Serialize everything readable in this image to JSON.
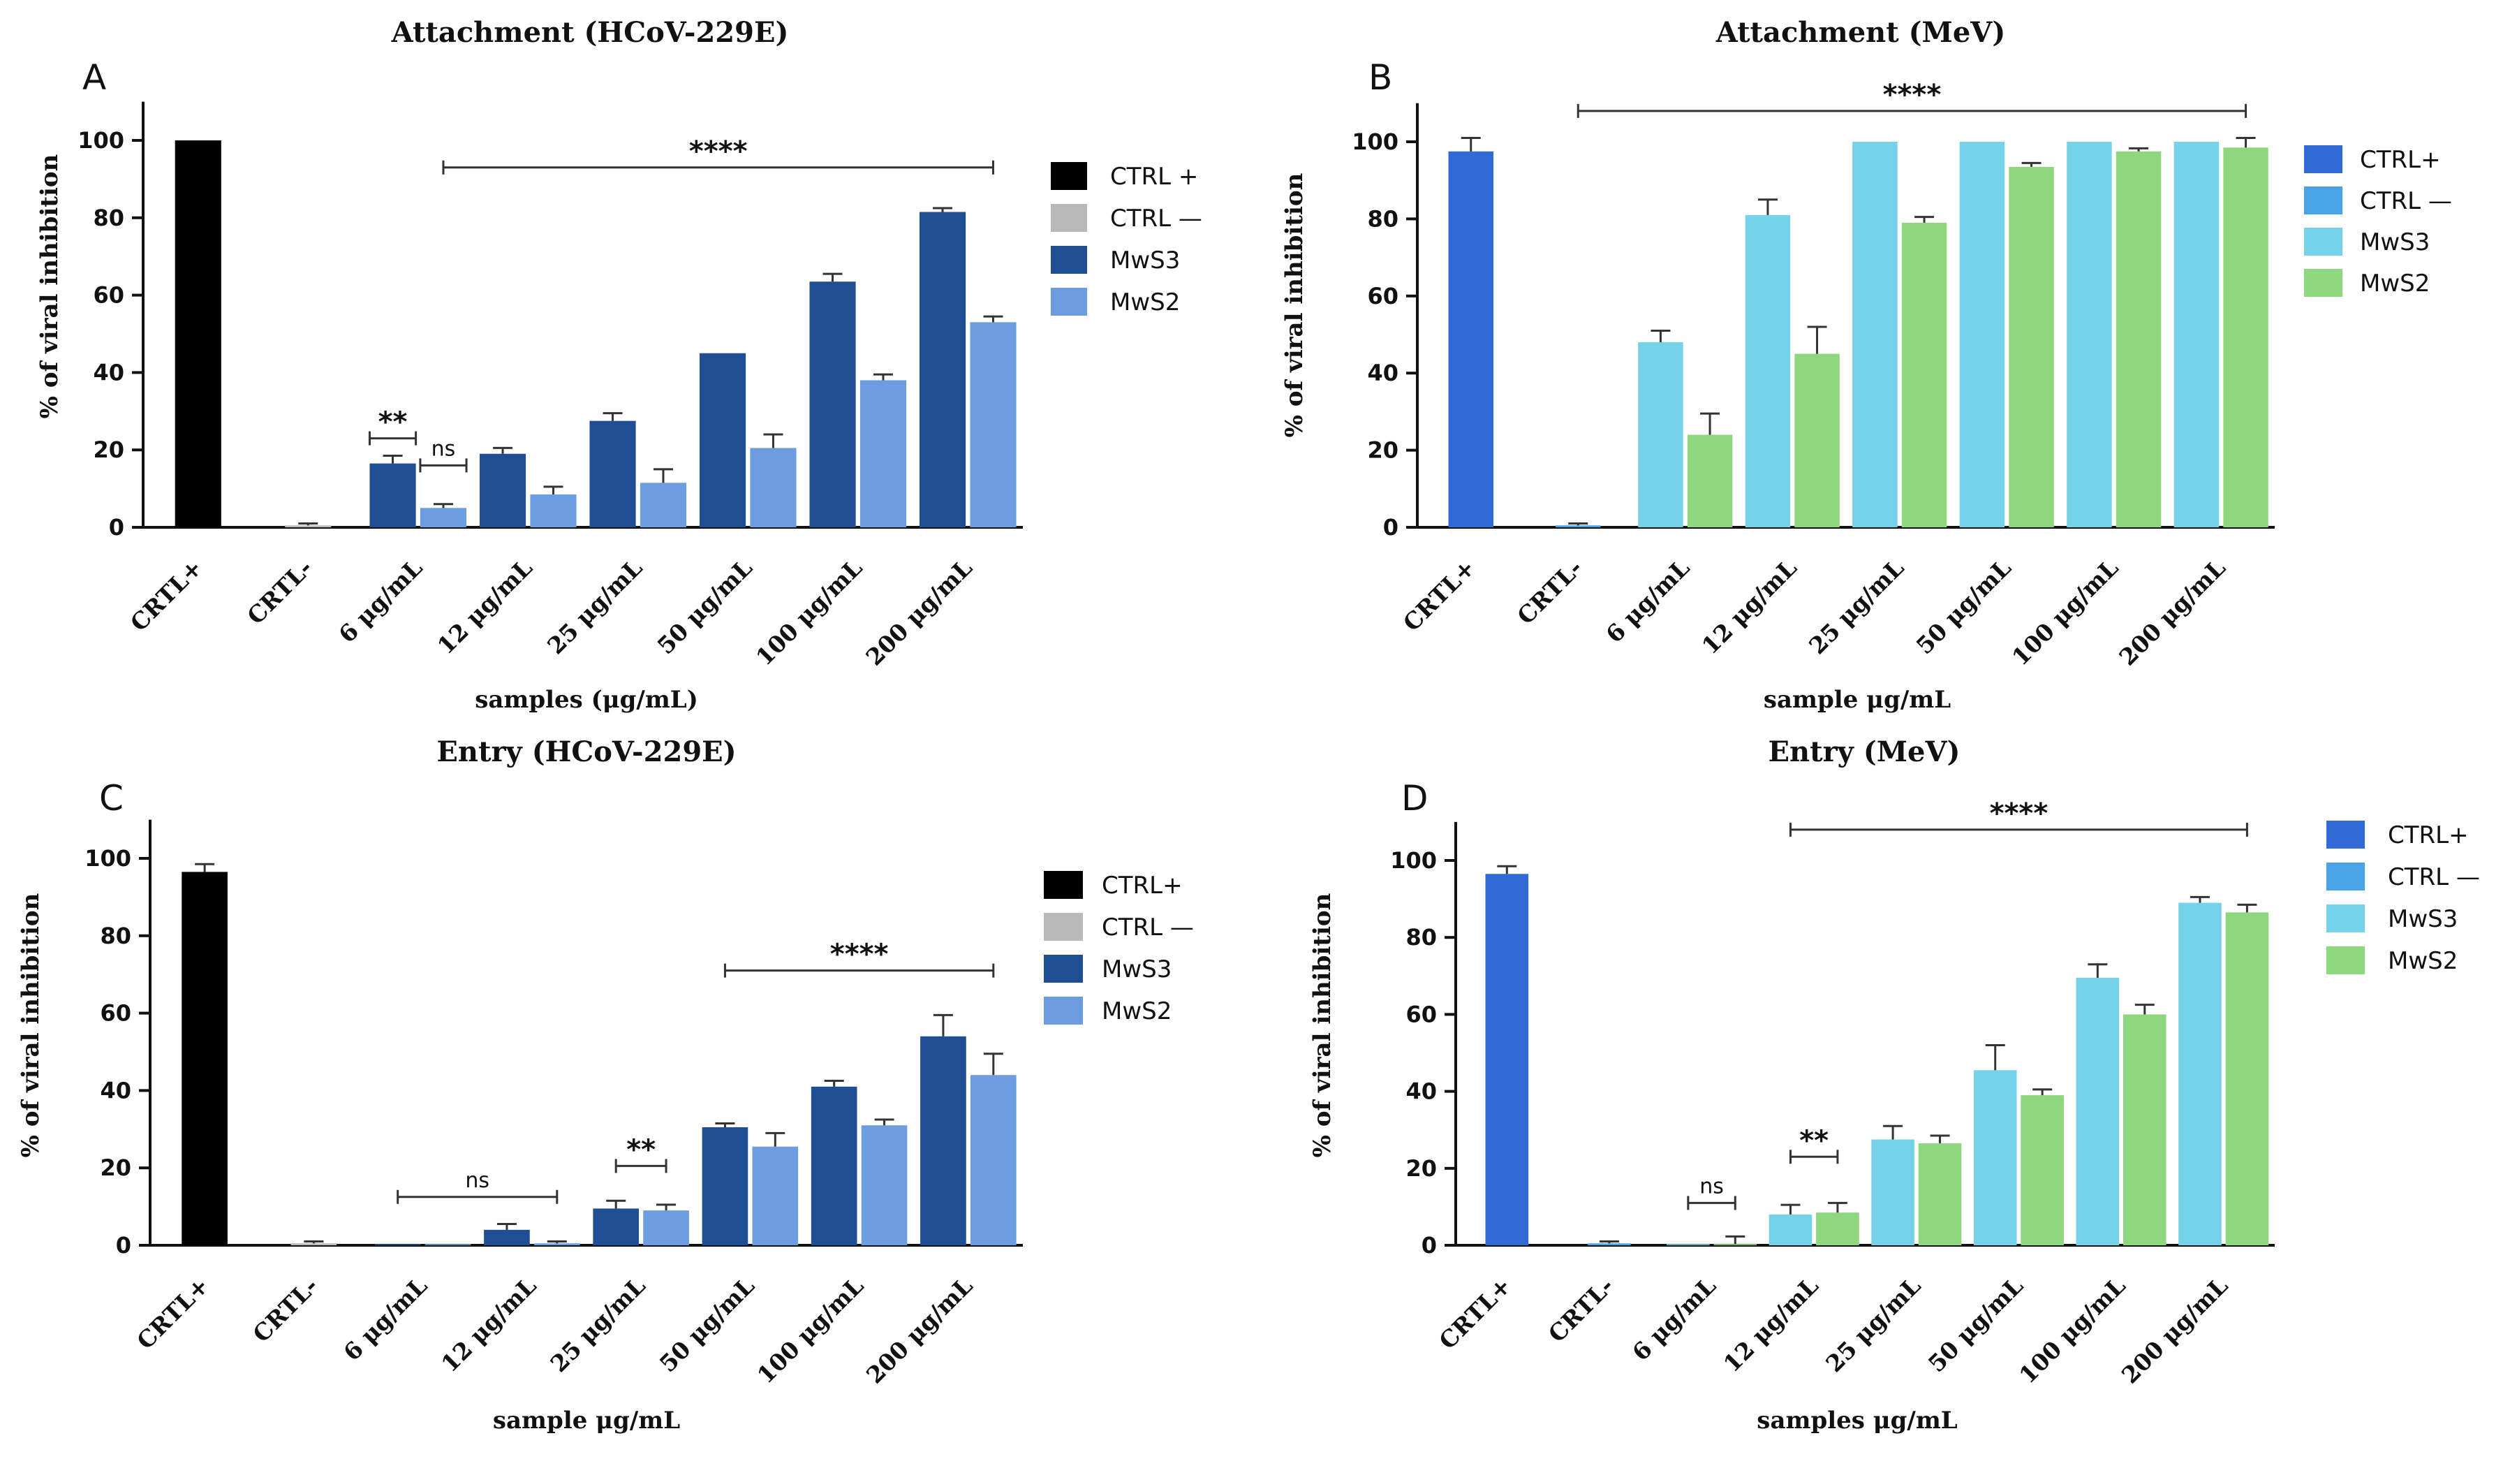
{
  "colors": {
    "black": "#000000",
    "grey": "#b9b9b9",
    "navy": "#1f4e94",
    "lightblue": "#6c9de0",
    "royal": "#2f6ad6",
    "sky": "#4aa3e6",
    "cyan": "#76d2e8",
    "green": "#8ed77f",
    "axis": "#111111"
  },
  "chart_data": [
    {
      "panel": "A",
      "type": "bar",
      "title": "Attachment  (HCoV-229E)",
      "ylabel": "% of viral inhibition",
      "xlabel": "samples (μg/mL)",
      "ylim": [
        0,
        110
      ],
      "yticks": [
        "0",
        "20",
        "40",
        "60",
        "80",
        "100"
      ],
      "categories": [
        "CRTL+",
        "CRTL-",
        "6 μg/mL",
        "12 μg/mL",
        "25 μg/mL",
        "50 μg/mL",
        "100 μg/mL",
        "200 μg/mL"
      ],
      "series": [
        {
          "name": "CTRL +",
          "color": "black",
          "values": [
            100,
            null,
            null,
            null,
            null,
            null,
            null,
            null
          ],
          "errors": [
            0,
            null,
            null,
            null,
            null,
            null,
            null,
            null
          ]
        },
        {
          "name": "CTRL —",
          "color": "grey",
          "values": [
            null,
            0.5,
            null,
            null,
            null,
            null,
            null,
            null
          ],
          "errors": [
            null,
            0.5,
            null,
            null,
            null,
            null,
            null,
            null
          ]
        },
        {
          "name": "MwS3",
          "color": "navy",
          "values": [
            null,
            null,
            16.5,
            19,
            27.5,
            45,
            63.5,
            81.5
          ],
          "errors": [
            null,
            null,
            2,
            1.5,
            2,
            0,
            2,
            1
          ]
        },
        {
          "name": "MwS2",
          "color": "lightblue",
          "values": [
            null,
            null,
            5,
            8.5,
            11.5,
            20.5,
            38,
            53
          ],
          "errors": [
            null,
            null,
            1,
            2,
            3.5,
            3.5,
            1.5,
            1.5
          ]
        }
      ],
      "annotations": [
        {
          "text": "****",
          "kind": "sig",
          "from": [
            2,
            1
          ],
          "to": [
            7,
            1
          ],
          "y": 93
        },
        {
          "text": "**",
          "kind": "sig",
          "from": [
            2,
            0
          ],
          "to": [
            2,
            0
          ],
          "y": 23
        },
        {
          "text": "ns",
          "kind": "ns",
          "from": [
            2,
            1
          ],
          "to": [
            2,
            1
          ],
          "y": 16
        }
      ]
    },
    {
      "panel": "B",
      "type": "bar",
      "title": "Attachment (MeV)",
      "ylabel": "% of viral inhibition",
      "xlabel": "sample μg/mL",
      "ylim": [
        0,
        110
      ],
      "yticks": [
        "0",
        "20",
        "40",
        "60",
        "80",
        "100"
      ],
      "categories": [
        "CRTL+",
        "CRTL-",
        "6 μg/mL",
        "12 μg/mL",
        "25 μg/mL",
        "50 μg/mL",
        "100 μg/mL",
        "200 μg/mL"
      ],
      "series": [
        {
          "name": "CTRL+",
          "color": "royal",
          "values": [
            97.5,
            null,
            null,
            null,
            null,
            null,
            null,
            null
          ],
          "errors": [
            3.5,
            null,
            null,
            null,
            null,
            null,
            null,
            null
          ]
        },
        {
          "name": "CTRL —",
          "color": "sky",
          "values": [
            null,
            0.5,
            null,
            null,
            null,
            null,
            null,
            null
          ],
          "errors": [
            null,
            0.5,
            null,
            null,
            null,
            null,
            null,
            null
          ]
        },
        {
          "name": "MwS3",
          "color": "cyan",
          "values": [
            null,
            null,
            48,
            81,
            100,
            100,
            100,
            100
          ],
          "errors": [
            null,
            null,
            3,
            4,
            0,
            0,
            0,
            0
          ]
        },
        {
          "name": "MwS2",
          "color": "green",
          "values": [
            null,
            null,
            24,
            45,
            79,
            93.5,
            97.5,
            98.5
          ],
          "errors": [
            null,
            null,
            5.5,
            7,
            1.5,
            1,
            0.8,
            2.5
          ]
        }
      ],
      "annotations": [
        {
          "text": "****",
          "kind": "sig",
          "from": [
            1,
            1
          ],
          "to": [
            7,
            1
          ],
          "y": 108
        }
      ]
    },
    {
      "panel": "C",
      "type": "bar",
      "title": "Entry  (HCoV-229E)",
      "ylabel": "% of viral inhibition",
      "xlabel": "sample μg/mL",
      "ylim": [
        0,
        110
      ],
      "yticks": [
        "0",
        "20",
        "40",
        "60",
        "80",
        "100"
      ],
      "categories": [
        "CRTL+",
        "CRTL-",
        "6 μg/mL",
        "12 μg/mL",
        "25 μg/mL",
        "50 μg/mL",
        "100 μg/mL",
        "200 μg/mL"
      ],
      "series": [
        {
          "name": "CTRL+",
          "color": "black",
          "values": [
            96.5,
            null,
            null,
            null,
            null,
            null,
            null,
            null
          ],
          "errors": [
            2,
            null,
            null,
            null,
            null,
            null,
            null,
            null
          ]
        },
        {
          "name": "CTRL —",
          "color": "grey",
          "values": [
            null,
            0.5,
            null,
            null,
            null,
            null,
            null,
            null
          ],
          "errors": [
            null,
            0.5,
            null,
            null,
            null,
            null,
            null,
            null
          ]
        },
        {
          "name": "MwS3",
          "color": "navy",
          "values": [
            null,
            null,
            0.3,
            4,
            9.5,
            30.5,
            41,
            54
          ],
          "errors": [
            null,
            null,
            0,
            1.5,
            2,
            1,
            1.5,
            5.5
          ]
        },
        {
          "name": "MwS2",
          "color": "lightblue",
          "values": [
            null,
            null,
            0.3,
            0.5,
            9,
            25.5,
            31,
            44
          ],
          "errors": [
            null,
            null,
            0,
            0.5,
            1.5,
            3.5,
            1.5,
            5.5
          ]
        }
      ],
      "annotations": [
        {
          "text": "ns",
          "kind": "ns",
          "from": [
            2,
            0
          ],
          "to": [
            3,
            1
          ],
          "y": 12.5
        },
        {
          "text": "**",
          "kind": "sig",
          "from": [
            4,
            0
          ],
          "to": [
            4,
            1
          ],
          "y": 20.5
        },
        {
          "text": "****",
          "kind": "sig",
          "from": [
            5,
            0
          ],
          "to": [
            7,
            1
          ],
          "y": 71
        }
      ]
    },
    {
      "panel": "D",
      "type": "bar",
      "title": "Entry (MeV)",
      "ylabel": "% of viral inhibition",
      "xlabel": "samples μg/mL",
      "ylim": [
        0,
        110
      ],
      "yticks": [
        "0",
        "20",
        "40",
        "60",
        "80",
        "100"
      ],
      "categories": [
        "CRTL+",
        "CRTL-",
        "6 μg/mL",
        "12 μg/mL",
        "25 μg/mL",
        "50 μg/mL",
        "100 μg/mL",
        "200 μg/mL"
      ],
      "series": [
        {
          "name": "CTRL+",
          "color": "royal",
          "values": [
            96.5,
            null,
            null,
            null,
            null,
            null,
            null,
            null
          ],
          "errors": [
            2,
            null,
            null,
            null,
            null,
            null,
            null,
            null
          ]
        },
        {
          "name": "CTRL —",
          "color": "sky",
          "values": [
            null,
            0.5,
            null,
            null,
            null,
            null,
            null,
            null
          ],
          "errors": [
            null,
            0.5,
            null,
            null,
            null,
            null,
            null,
            null
          ]
        },
        {
          "name": "MwS3",
          "color": "cyan",
          "values": [
            null,
            null,
            0.3,
            8,
            27.5,
            45.5,
            69.5,
            89
          ],
          "errors": [
            null,
            null,
            0,
            2.5,
            3.5,
            6.5,
            3.5,
            1.5
          ]
        },
        {
          "name": "MwS2",
          "color": "green",
          "values": [
            null,
            null,
            0.3,
            8.5,
            26.5,
            39,
            60,
            86.5
          ],
          "errors": [
            null,
            null,
            2,
            2.5,
            2,
            1.5,
            2.5,
            2
          ]
        }
      ],
      "annotations": [
        {
          "text": "****",
          "kind": "sig",
          "from": [
            3,
            0
          ],
          "to": [
            7,
            1
          ],
          "y": 108
        },
        {
          "text": "**",
          "kind": "sig",
          "from": [
            3,
            0
          ],
          "to": [
            3,
            1
          ],
          "y": 23
        },
        {
          "text": "ns",
          "kind": "ns",
          "from": [
            2,
            0
          ],
          "to": [
            2,
            1
          ],
          "y": 11
        }
      ]
    }
  ]
}
